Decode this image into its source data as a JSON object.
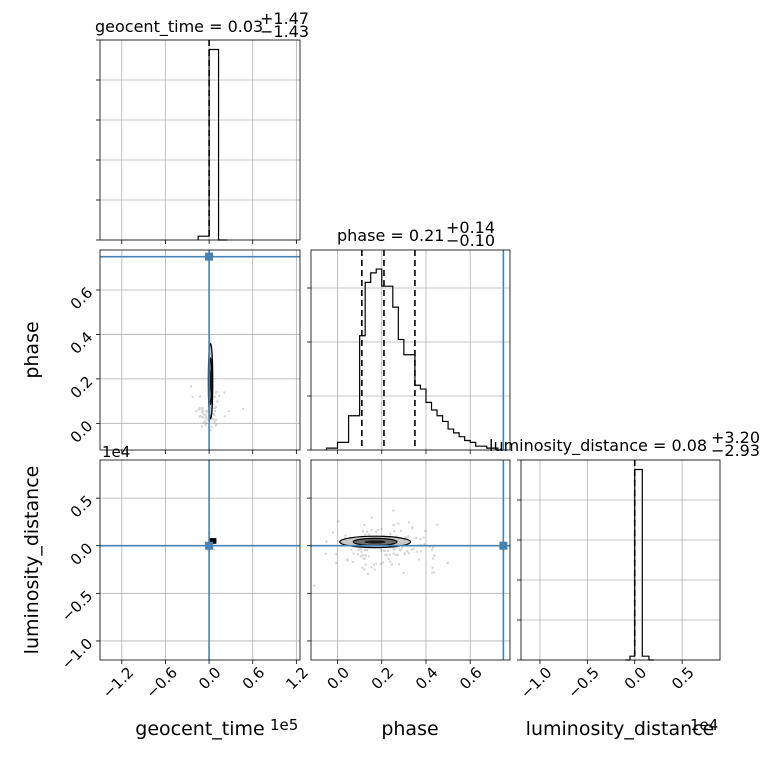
{
  "colors": {
    "truth": "#4682b4",
    "hist": "#000000",
    "grid": "#b0b0b0",
    "samples": "#888888"
  },
  "chart_data": {
    "type": "corner",
    "parameters": [
      "geocent_time",
      "phase",
      "luminosity_distance"
    ],
    "titles": [
      {
        "param": "geocent_time",
        "text": "geocent_time = 0.03",
        "plus": "+1.47",
        "minus": "−1.43"
      },
      {
        "param": "phase",
        "text": "phase = 0.21",
        "plus": "+0.14",
        "minus": "−0.10"
      },
      {
        "param": "luminosity_distance",
        "text": "luminosity_distance = 0.08",
        "plus": "+3.20",
        "minus": "−2.93"
      }
    ],
    "axis_labels": {
      "geocent_time": "geocent_time",
      "phase": "phase",
      "luminosity_distance": "luminosity_distance"
    },
    "offset_texts": {
      "geocent_time": "1e5",
      "luminosity_distance": "1e4"
    },
    "ranges": {
      "geocent_time": [
        -1.5,
        1.25
      ],
      "phase": [
        -0.12,
        0.78
      ],
      "luminosity_distance": [
        -1.2,
        0.9
      ]
    },
    "ticks": {
      "geocent_time": [
        {
          "v": -1.2,
          "label": "−1.2"
        },
        {
          "v": -0.6,
          "label": "−0.6"
        },
        {
          "v": 0.0,
          "label": "0.0"
        },
        {
          "v": 0.6,
          "label": "0.6"
        },
        {
          "v": 1.2,
          "label": "1.2"
        }
      ],
      "phase": [
        {
          "v": 0.0,
          "label": "0.0"
        },
        {
          "v": 0.2,
          "label": "0.2"
        },
        {
          "v": 0.4,
          "label": "0.4"
        },
        {
          "v": 0.6,
          "label": "0.6"
        }
      ],
      "phase_y": [
        {
          "v": 0.0,
          "label": "0.0"
        },
        {
          "v": 0.2,
          "label": "0.2"
        },
        {
          "v": 0.4,
          "label": "0.4"
        },
        {
          "v": 0.6,
          "label": "0.6"
        }
      ],
      "luminosity_distance": [
        {
          "v": -1.0,
          "label": "−1.0"
        },
        {
          "v": -0.5,
          "label": "−0.5"
        },
        {
          "v": 0.0,
          "label": "0.0"
        },
        {
          "v": 0.5,
          "label": "0.5"
        }
      ],
      "luminosity_distance_x": [
        {
          "v": -1.0,
          "label": "−1.0"
        },
        {
          "v": -0.5,
          "label": "−0.5"
        },
        {
          "v": 0.0,
          "label": "0.0"
        },
        {
          "v": 0.5,
          "label": "0.5"
        }
      ]
    },
    "truths": {
      "geocent_time": 0.0,
      "phase": 0.75,
      "luminosity_distance": 0.0
    },
    "quantiles": {
      "geocent_time": [
        0.0
      ],
      "phase": [
        0.11,
        0.21,
        0.35
      ],
      "luminosity_distance": [
        0.0
      ]
    },
    "histograms": {
      "geocent_time": {
        "edges": [
          -0.15,
          -0.05,
          0.0,
          0.13,
          0.25
        ],
        "counts": [
          0.02,
          0.02,
          1.0,
          0.0
        ]
      },
      "phase": {
        "edges": [
          -0.05,
          0.0,
          0.05,
          0.1,
          0.125,
          0.15,
          0.175,
          0.2,
          0.225,
          0.25,
          0.275,
          0.3,
          0.325,
          0.35,
          0.375,
          0.4,
          0.425,
          0.45,
          0.475,
          0.5,
          0.525,
          0.55,
          0.575,
          0.6,
          0.625,
          0.65,
          0.675,
          0.7,
          0.725,
          0.75
        ],
        "counts": [
          0.01,
          0.04,
          0.18,
          0.6,
          0.88,
          0.93,
          0.95,
          0.86,
          0.86,
          0.75,
          0.58,
          0.5,
          0.5,
          0.34,
          0.32,
          0.25,
          0.21,
          0.18,
          0.15,
          0.11,
          0.09,
          0.07,
          0.05,
          0.04,
          0.02,
          0.02,
          0.01,
          0.01,
          0.0
        ]
      },
      "luminosity_distance": {
        "edges": [
          -0.1,
          -0.05,
          0.0,
          0.08,
          0.15,
          0.2
        ],
        "counts": [
          0.0,
          0.02,
          1.0,
          0.02,
          0.0
        ]
      }
    },
    "contours": {
      "phase_vs_geocent_time": {
        "center": [
          0.02,
          0.19
        ],
        "width": 0.06,
        "height": 0.34
      },
      "luminosity_distance_vs_geocent_time": {
        "center": [
          0.05,
          0.05
        ],
        "width": 0.1,
        "height": 0.06
      },
      "luminosity_distance_vs_phase": {
        "center": [
          0.17,
          0.04
        ],
        "width": 0.32,
        "height": 0.12
      }
    }
  }
}
